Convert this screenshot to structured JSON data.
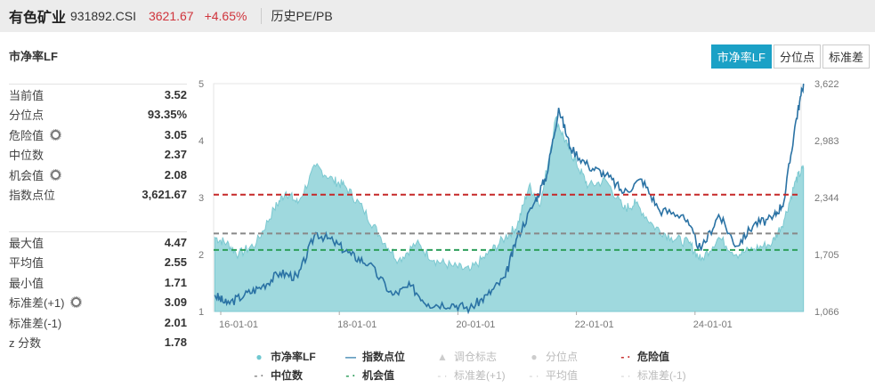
{
  "header": {
    "name": "有色矿业",
    "code": "931892.CSI",
    "price": "3621.67",
    "change": "+4.65%",
    "history_link": "历史PE/PB"
  },
  "section_title": "市净率LF",
  "tabs": [
    {
      "label": "市净率LF",
      "active": true
    },
    {
      "label": "分位点",
      "active": false
    },
    {
      "label": "标准差",
      "active": false
    }
  ],
  "stats_top": [
    {
      "label": "当前值",
      "value": "3.52",
      "gear": false
    },
    {
      "label": "分位点",
      "value": "93.35%",
      "gear": false
    },
    {
      "label": "危险值",
      "value": "3.05",
      "gear": true
    },
    {
      "label": "中位数",
      "value": "2.37",
      "gear": false
    },
    {
      "label": "机会值",
      "value": "2.08",
      "gear": true
    },
    {
      "label": "指数点位",
      "value": "3,621.67",
      "gear": false
    }
  ],
  "stats_bottom": [
    {
      "label": "最大值",
      "value": "4.47",
      "gear": false
    },
    {
      "label": "平均值",
      "value": "2.55",
      "gear": false
    },
    {
      "label": "最小值",
      "value": "1.71",
      "gear": false
    },
    {
      "label": "标准差(+1)",
      "value": "3.09",
      "gear": true
    },
    {
      "label": "标准差(-1)",
      "value": "2.01",
      "gear": false
    },
    {
      "label": "z 分数",
      "value": "1.78",
      "gear": false
    }
  ],
  "legend": [
    {
      "label": "市净率LF",
      "marker": "●",
      "color": "#6fc8d0",
      "on": true
    },
    {
      "label": "指数点位",
      "marker": "—",
      "color": "#2a78a8",
      "on": true
    },
    {
      "label": "调仓标志",
      "marker": "▲",
      "color": "#ccc",
      "on": false
    },
    {
      "label": "分位点",
      "marker": "●",
      "color": "#ccc",
      "on": false
    },
    {
      "label": "危险值",
      "marker": "- ·",
      "color": "#c62828",
      "on": true
    },
    {
      "label": "中位数",
      "marker": "- ·",
      "color": "#888",
      "on": true
    },
    {
      "label": "机会值",
      "marker": "- ·",
      "color": "#2e9e5b",
      "on": true
    },
    {
      "label": "标准差(+1)",
      "marker": "- ·",
      "color": "#ccc",
      "on": false
    },
    {
      "label": "平均值",
      "marker": "- ·",
      "color": "#ccc",
      "on": false
    },
    {
      "label": "标准差(-1)",
      "marker": "- ·",
      "color": "#ccc",
      "on": false
    }
  ],
  "chart_data": {
    "type": "area+line",
    "x_ticks": [
      "16-01-01",
      "18-01-01",
      "20-01-01",
      "22-01-01",
      "24-01-01"
    ],
    "y_left": {
      "ticks": [
        "1",
        "2",
        "3",
        "4",
        "5"
      ],
      "range": [
        1,
        5
      ]
    },
    "y_right": {
      "ticks": [
        "1,066",
        "1,705",
        "2,344",
        "2,983",
        "3,622"
      ],
      "range": [
        1066,
        3622
      ]
    },
    "ref_lines": {
      "danger": 3.05,
      "median": 2.37,
      "opportunity": 2.08
    },
    "pb": [
      [
        2015.9,
        2.3
      ],
      [
        2016.1,
        2.2
      ],
      [
        2016.3,
        2.0
      ],
      [
        2016.6,
        2.2
      ],
      [
        2016.9,
        2.8
      ],
      [
        2017.1,
        3.1
      ],
      [
        2017.3,
        2.9
      ],
      [
        2017.6,
        3.55
      ],
      [
        2017.9,
        3.3
      ],
      [
        2018.1,
        3.2
      ],
      [
        2018.4,
        2.8
      ],
      [
        2018.7,
        2.3
      ],
      [
        2019.0,
        1.9
      ],
      [
        2019.3,
        2.2
      ],
      [
        2019.6,
        1.9
      ],
      [
        2019.9,
        1.8
      ],
      [
        2020.2,
        1.72
      ],
      [
        2020.5,
        2.0
      ],
      [
        2020.8,
        2.3
      ],
      [
        2021.0,
        2.5
      ],
      [
        2021.2,
        3.2
      ],
      [
        2021.4,
        2.9
      ],
      [
        2021.65,
        4.4
      ],
      [
        2021.85,
        3.9
      ],
      [
        2022.0,
        3.6
      ],
      [
        2022.2,
        3.2
      ],
      [
        2022.5,
        3.3
      ],
      [
        2022.8,
        2.8
      ],
      [
        2023.0,
        2.9
      ],
      [
        2023.3,
        2.5
      ],
      [
        2023.6,
        2.3
      ],
      [
        2023.9,
        2.2
      ],
      [
        2024.1,
        1.9
      ],
      [
        2024.4,
        2.3
      ],
      [
        2024.7,
        2.0
      ],
      [
        2025.0,
        2.1
      ],
      [
        2025.3,
        2.2
      ],
      [
        2025.5,
        2.6
      ],
      [
        2025.7,
        3.3
      ],
      [
        2025.83,
        3.52
      ]
    ],
    "index": [
      [
        2015.9,
        1250
      ],
      [
        2016.1,
        1150
      ],
      [
        2016.4,
        1250
      ],
      [
        2016.7,
        1350
      ],
      [
        2017.0,
        1500
      ],
      [
        2017.3,
        1450
      ],
      [
        2017.6,
        1950
      ],
      [
        2017.9,
        1850
      ],
      [
        2018.2,
        1700
      ],
      [
        2018.5,
        1600
      ],
      [
        2018.9,
        1250
      ],
      [
        2019.2,
        1350
      ],
      [
        2019.5,
        1150
      ],
      [
        2019.9,
        1150
      ],
      [
        2020.2,
        1100
      ],
      [
        2020.5,
        1250
      ],
      [
        2020.8,
        1450
      ],
      [
        2021.0,
        1900
      ],
      [
        2021.3,
        2300
      ],
      [
        2021.5,
        2600
      ],
      [
        2021.7,
        3350
      ],
      [
        2021.9,
        2900
      ],
      [
        2022.2,
        2700
      ],
      [
        2022.5,
        2600
      ],
      [
        2022.8,
        2400
      ],
      [
        2023.1,
        2550
      ],
      [
        2023.4,
        2200
      ],
      [
        2023.8,
        2150
      ],
      [
        2024.1,
        1750
      ],
      [
        2024.4,
        2150
      ],
      [
        2024.7,
        1800
      ],
      [
        2025.0,
        2050
      ],
      [
        2025.3,
        2100
      ],
      [
        2025.5,
        2300
      ],
      [
        2025.7,
        3200
      ],
      [
        2025.83,
        3622
      ]
    ]
  }
}
